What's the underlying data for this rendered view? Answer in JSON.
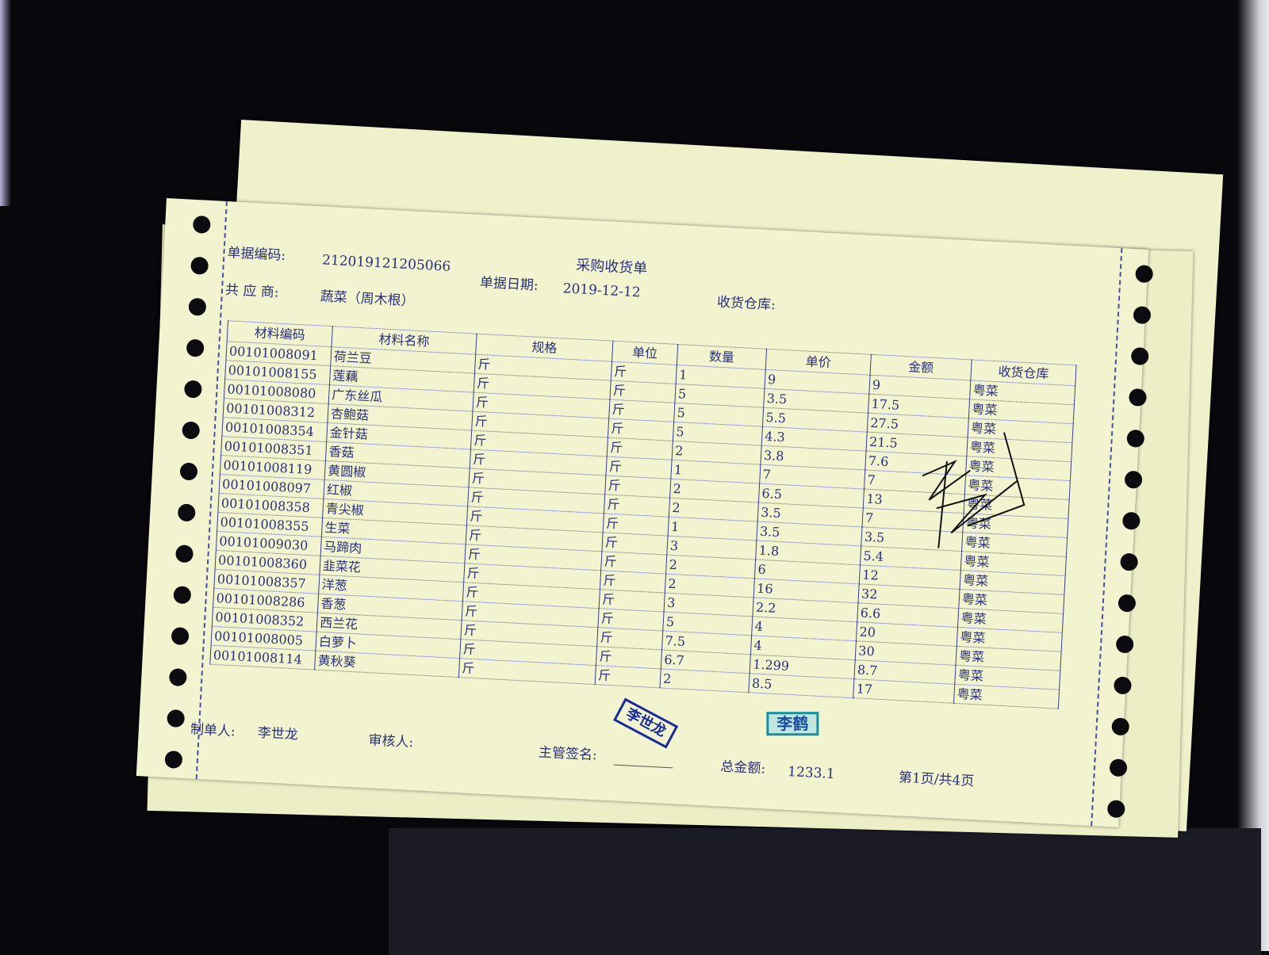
{
  "document": {
    "title": "采购收货单",
    "doc_no_label": "单据编码:",
    "doc_no": "212019121205066",
    "date_label": "单据日期:",
    "date": "2019-12-12",
    "supplier_label": "共 应 商:",
    "supplier": "蔬菜（周木根）",
    "warehouse_label": "收货仓库:"
  },
  "table": {
    "headers": [
      "材料编码",
      "材料名称",
      "规格",
      "单位",
      "数量",
      "单价",
      "金额",
      "收货仓库"
    ],
    "rows": [
      [
        "00101008091",
        "荷兰豆",
        "斤",
        "斤",
        "1",
        "9",
        "9",
        "粤菜"
      ],
      [
        "00101008155",
        "莲藕",
        "斤",
        "斤",
        "5",
        "3.5",
        "17.5",
        "粤菜"
      ],
      [
        "00101008080",
        "广东丝瓜",
        "斤",
        "斤",
        "5",
        "5.5",
        "27.5",
        "粤菜"
      ],
      [
        "00101008312",
        "杏鲍菇",
        "斤",
        "斤",
        "5",
        "4.3",
        "21.5",
        "粤菜"
      ],
      [
        "00101008354",
        "金针菇",
        "斤",
        "斤",
        "2",
        "3.8",
        "7.6",
        "粤菜"
      ],
      [
        "00101008351",
        "香菇",
        "斤",
        "斤",
        "1",
        "7",
        "7",
        "粤菜"
      ],
      [
        "00101008119",
        "黄圆椒",
        "斤",
        "斤",
        "2",
        "6.5",
        "13",
        "粤菜"
      ],
      [
        "00101008097",
        "红椒",
        "斤",
        "斤",
        "2",
        "3.5",
        "7",
        "粤菜"
      ],
      [
        "00101008358",
        "青尖椒",
        "斤",
        "斤",
        "1",
        "3.5",
        "3.5",
        "粤菜"
      ],
      [
        "00101008355",
        "生菜",
        "斤",
        "斤",
        "3",
        "1.8",
        "5.4",
        "粤菜"
      ],
      [
        "00101009030",
        "马蹄肉",
        "斤",
        "斤",
        "2",
        "6",
        "12",
        "粤菜"
      ],
      [
        "00101008360",
        "韭菜花",
        "斤",
        "斤",
        "2",
        "16",
        "32",
        "粤菜"
      ],
      [
        "00101008357",
        "洋葱",
        "斤",
        "斤",
        "3",
        "2.2",
        "6.6",
        "粤菜"
      ],
      [
        "00101008286",
        "香葱",
        "斤",
        "斤",
        "5",
        "4",
        "20",
        "粤菜"
      ],
      [
        "00101008352",
        "西兰花",
        "斤",
        "斤",
        "7.5",
        "4",
        "30",
        "粤菜"
      ],
      [
        "00101008005",
        "白萝卜",
        "斤",
        "斤",
        "6.7",
        "1.299",
        "8.7",
        "粤菜"
      ],
      [
        "00101008114",
        "黄秋葵",
        "斤",
        "斤",
        "2",
        "8.5",
        "17",
        "粤菜"
      ]
    ]
  },
  "footer": {
    "maker_label": "制单人:",
    "maker": "李世龙",
    "reviewer_label": "审核人:",
    "supervisor_label": "主管签名:",
    "total_label": "总金额:",
    "total": "1233.1",
    "page": "第1页/共4页"
  },
  "stamps": [
    "李世龙",
    "李鹤"
  ],
  "colors": {
    "paper": "#f1f4cf",
    "ink": "#2b2f7a",
    "background": "#07070c"
  }
}
